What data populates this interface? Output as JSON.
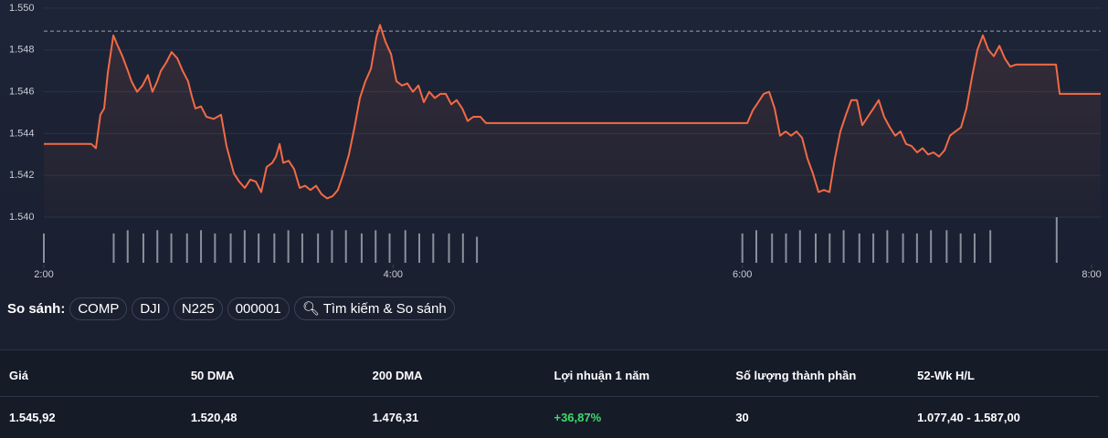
{
  "chart_data": {
    "type": "line",
    "x": [
      2.0,
      2.272,
      2.298,
      2.324,
      2.345,
      2.366,
      2.398,
      2.418,
      2.45,
      2.481,
      2.502,
      2.534,
      2.565,
      2.596,
      2.622,
      2.649,
      2.67,
      2.701,
      2.732,
      2.764,
      2.795,
      2.826,
      2.847,
      2.868,
      2.9,
      2.931,
      2.973,
      3.015,
      3.046,
      3.088,
      3.119,
      3.151,
      3.182,
      3.214,
      3.245,
      3.276,
      3.308,
      3.329,
      3.35,
      3.371,
      3.402,
      3.433,
      3.465,
      3.496,
      3.527,
      3.559,
      3.59,
      3.622,
      3.653,
      3.684,
      3.716,
      3.747,
      3.779,
      3.81,
      3.841,
      3.873,
      3.904,
      3.925,
      3.956,
      3.988,
      4.019,
      4.051,
      4.082,
      4.113,
      4.145,
      4.176,
      4.207,
      4.239,
      4.27,
      4.302,
      4.333,
      4.364,
      4.396,
      4.427,
      4.459,
      4.5,
      4.532,
      6.028,
      6.059,
      6.091,
      6.122,
      6.153,
      6.185,
      6.216,
      6.248,
      6.279,
      6.31,
      6.342,
      6.373,
      6.404,
      6.436,
      6.467,
      6.499,
      6.53,
      6.561,
      6.593,
      6.624,
      6.656,
      6.687,
      6.718,
      6.75,
      6.781,
      6.812,
      6.844,
      6.875,
      6.906,
      6.938,
      6.969,
      7.001,
      7.032,
      7.064,
      7.095,
      7.126,
      7.158,
      7.189,
      7.22,
      7.252,
      7.283,
      7.315,
      7.346,
      7.377,
      7.409,
      7.44,
      7.472,
      7.503,
      7.534,
      7.566,
      7.796,
      7.817,
      8.052
    ],
    "series": [
      {
        "color": "#f26a45",
        "values": [
          1.5435,
          1.5435,
          1.5433,
          1.5449,
          1.5452,
          1.5469,
          1.5487,
          1.5483,
          1.5477,
          1.547,
          1.5465,
          1.546,
          1.5463,
          1.5468,
          1.546,
          1.5465,
          1.547,
          1.5474,
          1.5479,
          1.5476,
          1.547,
          1.5465,
          1.5458,
          1.5452,
          1.5453,
          1.5448,
          1.5447,
          1.5449,
          1.5434,
          1.5421,
          1.5417,
          1.5414,
          1.5418,
          1.5417,
          1.5412,
          1.5424,
          1.5426,
          1.5429,
          1.5435,
          1.5426,
          1.5427,
          1.5423,
          1.5414,
          1.5415,
          1.5413,
          1.5415,
          1.5411,
          1.5409,
          1.541,
          1.5413,
          1.5421,
          1.543,
          1.5443,
          1.5457,
          1.5465,
          1.5471,
          1.5486,
          1.5492,
          1.5484,
          1.5478,
          1.5465,
          1.5463,
          1.5464,
          1.546,
          1.5463,
          1.5455,
          1.546,
          1.5457,
          1.5459,
          1.5459,
          1.5454,
          1.5456,
          1.5452,
          1.5446,
          1.5448,
          1.5448,
          1.5445,
          1.5445,
          1.5451,
          1.5455,
          1.5459,
          1.546,
          1.5452,
          1.5439,
          1.5441,
          1.5439,
          1.5441,
          1.5438,
          1.5428,
          1.5421,
          1.5412,
          1.5413,
          1.5412,
          1.5428,
          1.5441,
          1.5449,
          1.5456,
          1.5456,
          1.5444,
          1.5448,
          1.5452,
          1.5456,
          1.5448,
          1.5443,
          1.5439,
          1.5441,
          1.5435,
          1.5434,
          1.5431,
          1.5433,
          1.543,
          1.5431,
          1.5429,
          1.5432,
          1.5439,
          1.5441,
          1.5443,
          1.5452,
          1.5467,
          1.548,
          1.5487,
          1.548,
          1.5477,
          1.5482,
          1.5476,
          1.5472,
          1.5473,
          1.5473,
          1.5459,
          1.5459
        ]
      }
    ],
    "volume": {
      "color": "#8a909c",
      "x": [
        2.0,
        2.4,
        2.48,
        2.57,
        2.65,
        2.73,
        2.82,
        2.9,
        2.98,
        3.07,
        3.15,
        3.23,
        3.32,
        3.4,
        3.48,
        3.57,
        3.65,
        3.73,
        3.82,
        3.9,
        3.98,
        4.07,
        4.15,
        4.23,
        4.32,
        4.4,
        4.48,
        6.0,
        6.08,
        6.17,
        6.25,
        6.33,
        6.42,
        6.5,
        6.58,
        6.67,
        6.75,
        6.83,
        6.92,
        7.0,
        7.08,
        7.17,
        7.25,
        7.33,
        7.42,
        7.8
      ],
      "values": [
        9,
        9,
        10,
        9,
        10,
        9,
        9,
        10,
        9,
        9,
        10,
        9,
        9,
        10,
        9,
        9,
        10,
        10,
        9,
        10,
        9,
        10,
        9,
        9,
        9,
        9,
        8,
        9,
        10,
        9,
        9,
        10,
        9,
        9,
        10,
        9,
        9,
        10,
        9,
        9,
        10,
        10,
        9,
        9,
        10,
        14
      ]
    },
    "reference_line": 1.5489,
    "xlim": [
      2,
      8.052
    ],
    "xticks": [
      {
        "value": 2,
        "label": "2:00"
      },
      {
        "value": 4,
        "label": "4:00"
      },
      {
        "value": 6,
        "label": "6:00"
      },
      {
        "value": 8,
        "label": "8:00"
      }
    ],
    "ylim": [
      1.53773,
      1.55039
    ],
    "yticks": [
      {
        "value": 1.54,
        "label": "1.540"
      },
      {
        "value": 1.542,
        "label": "1.542"
      },
      {
        "value": 1.544,
        "label": "1.544"
      },
      {
        "value": 1.546,
        "label": "1.546"
      },
      {
        "value": 1.548,
        "label": "1.548"
      },
      {
        "value": 1.55,
        "label": "1.550"
      }
    ],
    "grid": true
  },
  "compare": {
    "label": "So sánh:",
    "items": [
      "COMP",
      "DJI",
      "N225",
      "000001"
    ],
    "search": "Tìm kiếm & So sánh"
  },
  "table": {
    "headers": [
      "Giá",
      "50 DMA",
      "200 DMA",
      "Lợi nhuận 1 năm",
      "Số lượng thành phần",
      "52-Wk H/L"
    ],
    "rows": [
      [
        "1.545,92",
        "1.520,48",
        "1.476,31",
        "+36,87%",
        "30",
        "1.077,40 - 1.587,00"
      ]
    ]
  }
}
